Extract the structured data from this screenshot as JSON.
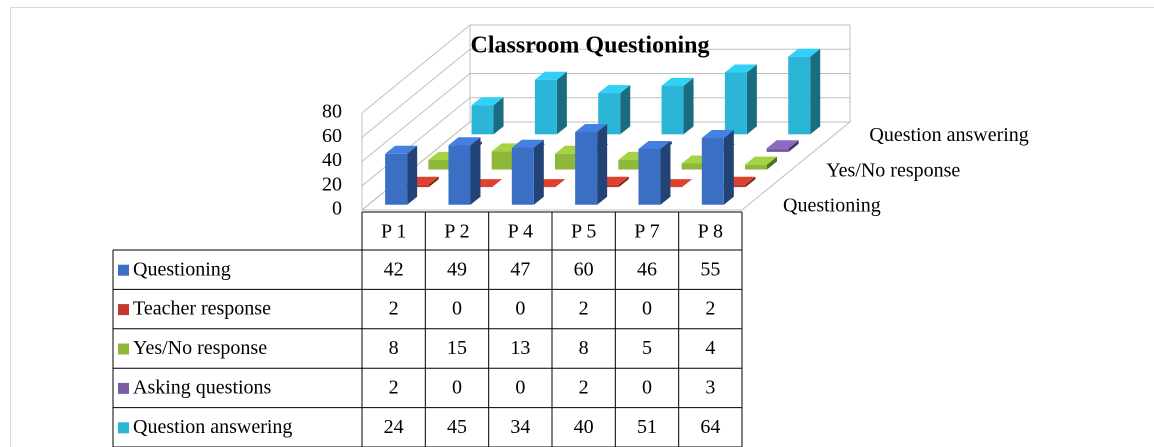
{
  "chart_data": {
    "type": "bar3d",
    "title": "Classroom Questioning",
    "categories": [
      "P 1",
      "P 2",
      "P 4",
      "P 5",
      "P 7",
      "P 8"
    ],
    "series": [
      {
        "name": "Questioning",
        "color": "#3a6fc4",
        "values": [
          42,
          49,
          47,
          60,
          46,
          55
        ]
      },
      {
        "name": "Teacher response",
        "color": "#c0392b",
        "values": [
          2,
          0,
          0,
          2,
          0,
          2
        ]
      },
      {
        "name": "Yes/No response",
        "color": "#8fb83a",
        "values": [
          8,
          15,
          13,
          8,
          5,
          4
        ]
      },
      {
        "name": "Asking questions",
        "color": "#7a5ca6",
        "values": [
          2,
          0,
          0,
          2,
          0,
          3
        ]
      },
      {
        "name": "Question answering",
        "color": "#2bb5d6",
        "values": [
          24,
          45,
          34,
          40,
          51,
          64
        ]
      }
    ],
    "ylim": [
      0,
      80
    ],
    "yticks": [
      0,
      20,
      40,
      60,
      80
    ],
    "grid": true,
    "data_table": true
  }
}
